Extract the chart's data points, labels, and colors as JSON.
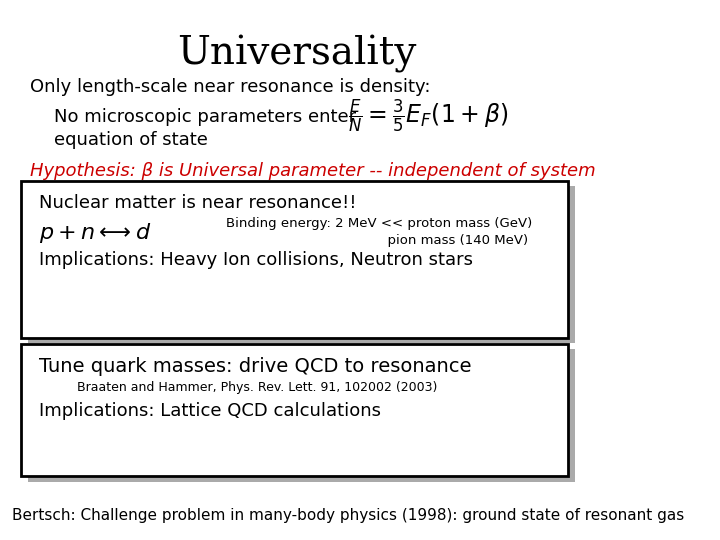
{
  "title": "Universality",
  "line1": "Only length-scale near resonance is density:",
  "line2a": "No microscopic parameters enter",
  "line2b": "equation of state",
  "equation": "$\\frac{E}{N} = \\frac{3}{5}E_F(1+\\beta)$",
  "hypothesis": "Hypothesis: β is Universal parameter -- independent of system",
  "box1_line1": "Nuclear matter is near resonance!!",
  "box1_formula": "$p + n \\longleftrightarrow d$",
  "box1_binding1": "Binding energy: 2 MeV << proton mass (GeV)",
  "box1_binding2": "                                      pion mass (140 MeV)",
  "box1_impl": "Implications: Heavy Ion collisions, Neutron stars",
  "box2_line1": "Tune quark masses: drive QCD to resonance",
  "box2_ref": "Braaten and Hammer, Phys. Rev. Lett. 91, 102002 (2003)",
  "box2_impl": "Implications: Lattice QCD calculations",
  "footer": "Bertsch: Challenge problem in many-body physics (1998): ground state of resonant gas",
  "bg_color": "#ffffff",
  "text_color": "#000000",
  "hypothesis_color": "#cc0000",
  "title_fontsize": 28,
  "body_fontsize": 13,
  "footer_fontsize": 11,
  "hypothesis_fontsize": 13
}
